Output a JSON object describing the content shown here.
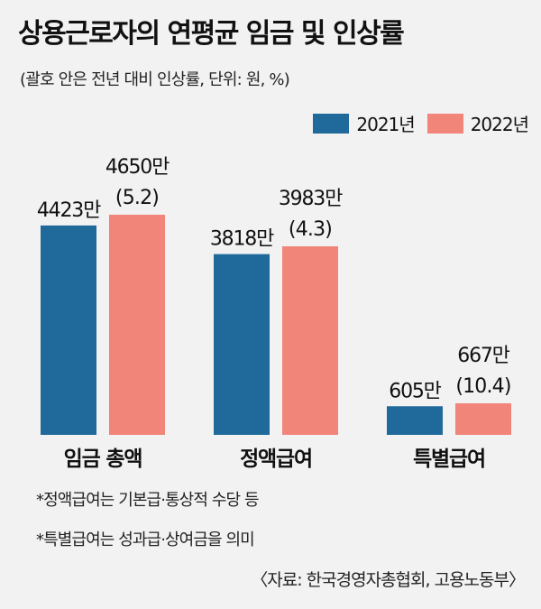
{
  "title": "상용근로자의 연평균 임금 및 인상률",
  "subtitle": "(괄호 안은 전년 대비 인상률, 단위: 원, %)",
  "legend": [
    {
      "label": "2021년",
      "color": "#1f6a9a"
    },
    {
      "label": "2022년",
      "color": "#f1857a"
    }
  ],
  "notes": [
    "*정액급여는 기본급·통상적 수당 등",
    "*특별급여는 성과급·상여금을 의미"
  ],
  "source": "〈자료: 한국경영자총협회, 고용노동부〉",
  "chart_data": {
    "type": "bar",
    "categories": [
      "임금 총액",
      "정액급여",
      "특별급여"
    ],
    "series": [
      {
        "name": "2021년",
        "values": [
          4423,
          3818,
          605
        ],
        "labels": [
          "4423만",
          "3818만",
          "605만"
        ]
      },
      {
        "name": "2022년",
        "values": [
          4650,
          3983,
          667
        ],
        "labels": [
          "4650만",
          "3983만",
          "667만"
        ],
        "rates": [
          "(5.2)",
          "(4.3)",
          "(10.4)"
        ]
      }
    ],
    "colors": [
      "#1f6a9a",
      "#f1857a"
    ],
    "ylim": [
      0,
      4650
    ],
    "legend_position": "top-right",
    "grid": false
  }
}
